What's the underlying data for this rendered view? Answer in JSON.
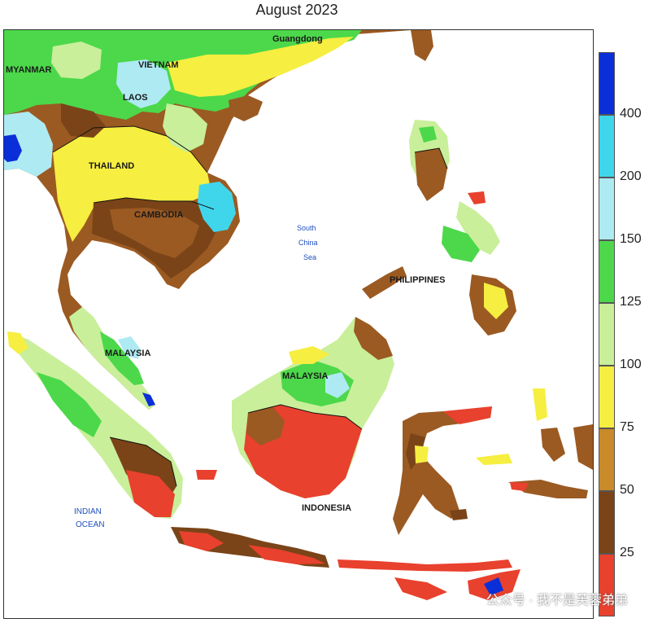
{
  "title": "August 2023",
  "labels": {
    "guangdong": "Guangdong",
    "myanmar": "MYANMAR",
    "vietnam": "VIETNAM",
    "laos": "LAOS",
    "thailand": "THAILAND",
    "cambodia": "CAMBODIA",
    "south_china_sea_1": "South",
    "south_china_sea_2": "China",
    "south_china_sea_3": "Sea",
    "philippines": "PHILIPPINES",
    "malaysia_west": "MALAYSIA",
    "malaysia_east": "MALAYSIA",
    "indonesia": "INDONESIA",
    "indian_ocean_1": "INDIAN",
    "indian_ocean_2": "OCEAN"
  },
  "legend": {
    "ticks": [
      "400",
      "200",
      "150",
      "125",
      "100",
      "75",
      "50",
      "25"
    ],
    "colors": [
      "#0a2fd8",
      "#3fd6ec",
      "#aeeaf2",
      "#4cd84a",
      "#c9ef9a",
      "#f6ee40",
      "#c98a2a",
      "#7a4418",
      "#e8412e"
    ]
  },
  "watermark": "公众号 · 我不是芙蓉弟弟"
}
